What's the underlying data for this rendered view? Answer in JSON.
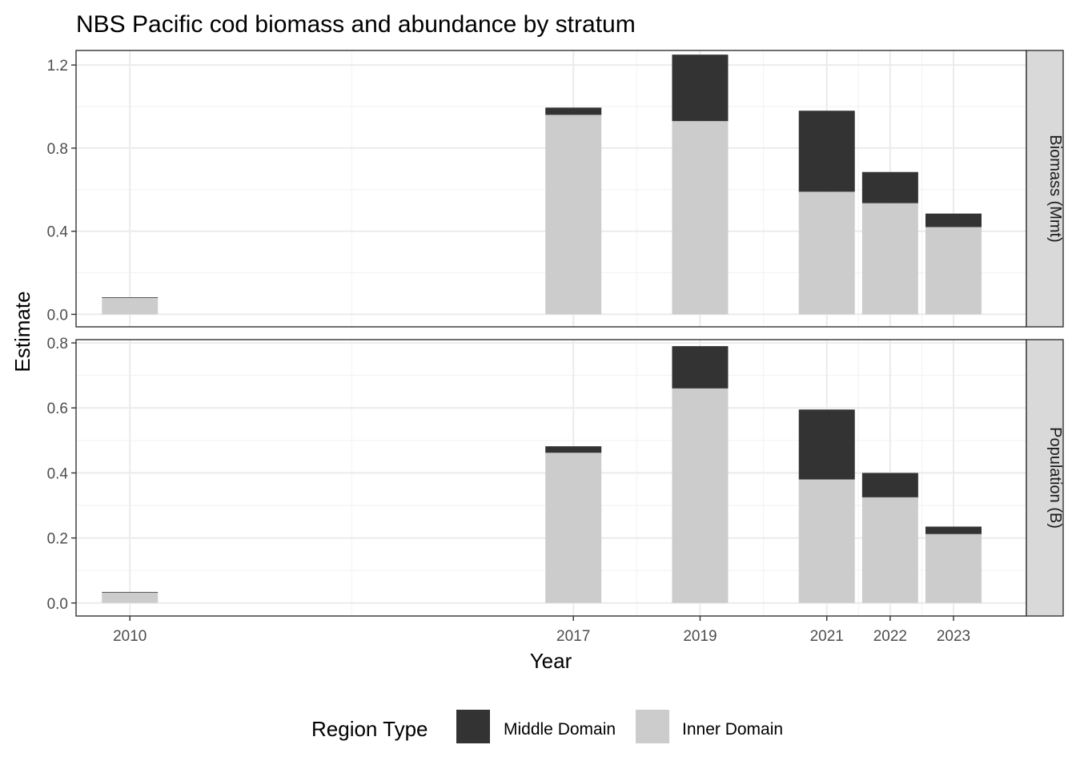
{
  "chart_data": {
    "type": "bar",
    "stacked": true,
    "title": "NBS Pacific cod biomass and abundance by stratum",
    "xlabel": "Year",
    "ylabel": "Estimate",
    "x_ticks": [
      2010,
      2017,
      2019,
      2021,
      2022,
      2023
    ],
    "legend": {
      "title": "Region Type",
      "position": "bottom",
      "entries": [
        {
          "name": "Middle Domain",
          "color": "#333333"
        },
        {
          "name": "Inner Domain",
          "color": "#cccccc"
        }
      ]
    },
    "grid": true,
    "panels": [
      {
        "strip": "Biomass (Mmt)",
        "ylim": [
          -0.06,
          1.27
        ],
        "y_ticks": [
          0.0,
          0.4,
          0.8,
          1.2
        ],
        "y_tick_labels": [
          "0.0",
          "0.4",
          "0.8",
          "1.2"
        ],
        "x": [
          2010,
          2017,
          2019,
          2021,
          2022,
          2023
        ],
        "series": [
          {
            "name": "Inner Domain",
            "values": [
              0.079,
              0.96,
              0.93,
              0.59,
              0.535,
              0.42
            ]
          },
          {
            "name": "Middle Domain",
            "values": [
              0.003,
              0.035,
              0.32,
              0.39,
              0.15,
              0.065
            ]
          }
        ]
      },
      {
        "strip": "Population (B)",
        "ylim": [
          -0.04,
          0.81
        ],
        "y_ticks": [
          0.0,
          0.2,
          0.4,
          0.6,
          0.8
        ],
        "y_tick_labels": [
          "0.0",
          "0.2",
          "0.4",
          "0.6",
          "0.8"
        ],
        "x": [
          2010,
          2017,
          2019,
          2021,
          2022,
          2023
        ],
        "series": [
          {
            "name": "Inner Domain",
            "values": [
              0.032,
              0.462,
              0.66,
              0.38,
              0.325,
              0.212
            ]
          },
          {
            "name": "Middle Domain",
            "values": [
              0.002,
              0.02,
              0.13,
              0.215,
              0.075,
              0.023
            ]
          }
        ]
      }
    ]
  }
}
